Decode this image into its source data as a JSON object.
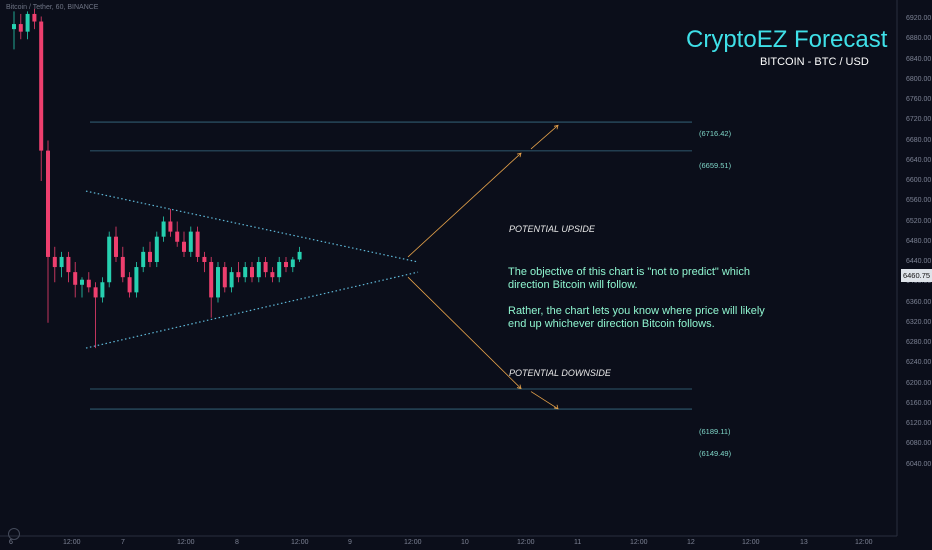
{
  "header": {
    "symbol_line": "Bitcoin / Tether, 60, BINANCE"
  },
  "title": {
    "main": "CryptoEZ Forecast",
    "sub": "BITCOIN - BTC / USD"
  },
  "annotations": {
    "potential_upside": "POTENTIAL UPSIDE",
    "potential_downside": "POTENTIAL DOWNSIDE",
    "note_1": "The objective of this chart is \"not to predict\" which\ndirection Bitcoin will follow.",
    "note_2": "Rather, the chart lets you know where price will likely\nend up whichever direction Bitcoin follows."
  },
  "levels": [
    {
      "label": "(6716.42)",
      "price": 6716.42
    },
    {
      "label": "(6659.51)",
      "price": 6659.51
    },
    {
      "label": "(6189.11)",
      "price": 6189.11
    },
    {
      "label": "(6149.49)",
      "price": 6149.49
    }
  ],
  "current_price": "6460.75",
  "price_axis": [
    "6920.00",
    "6880.00",
    "6840.00",
    "6800.00",
    "6760.00",
    "6720.00",
    "6680.00",
    "6640.00",
    "6600.00",
    "6560.00",
    "6520.00",
    "6480.00",
    "6440.00",
    "6400.00",
    "6360.00",
    "6320.00",
    "6280.00",
    "6240.00",
    "6200.00",
    "6160.00",
    "6120.00",
    "6080.00",
    "6040.00"
  ],
  "time_axis": [
    "6",
    "12:00",
    "7",
    "12:00",
    "8",
    "12:00",
    "9",
    "12:00",
    "10",
    "12:00",
    "11",
    "12:00",
    "12",
    "12:00",
    "13",
    "12:00"
  ],
  "colors": {
    "background": "#0b0e1a",
    "up_candle": "#26d0b0",
    "down_candle": "#ee3f6e",
    "triangle": "#5fb8d8",
    "projection": "#e6a24a",
    "level_line": "#3a6f86",
    "title": "#3fe0e8",
    "note": "#8ff5d0"
  },
  "chart_data": {
    "type": "candlestick",
    "ylim": [
      6020,
      6940
    ],
    "candles": [
      {
        "o": 6900,
        "h": 6935,
        "l": 6860,
        "c": 6910
      },
      {
        "o": 6910,
        "h": 6930,
        "l": 6880,
        "c": 6895
      },
      {
        "o": 6895,
        "h": 6935,
        "l": 6880,
        "c": 6930
      },
      {
        "o": 6930,
        "h": 6940,
        "l": 6900,
        "c": 6915
      },
      {
        "o": 6915,
        "h": 6925,
        "l": 6600,
        "c": 6660
      },
      {
        "o": 6660,
        "h": 6680,
        "l": 6320,
        "c": 6450
      },
      {
        "o": 6450,
        "h": 6470,
        "l": 6400,
        "c": 6430
      },
      {
        "o": 6430,
        "h": 6460,
        "l": 6410,
        "c": 6450
      },
      {
        "o": 6450,
        "h": 6460,
        "l": 6400,
        "c": 6420
      },
      {
        "o": 6420,
        "h": 6440,
        "l": 6370,
        "c": 6395
      },
      {
        "o": 6395,
        "h": 6410,
        "l": 6370,
        "c": 6405
      },
      {
        "o": 6405,
        "h": 6420,
        "l": 6380,
        "c": 6390
      },
      {
        "o": 6390,
        "h": 6400,
        "l": 6270,
        "c": 6370
      },
      {
        "o": 6370,
        "h": 6410,
        "l": 6360,
        "c": 6400
      },
      {
        "o": 6400,
        "h": 6500,
        "l": 6390,
        "c": 6490
      },
      {
        "o": 6490,
        "h": 6510,
        "l": 6440,
        "c": 6450
      },
      {
        "o": 6450,
        "h": 6470,
        "l": 6400,
        "c": 6410
      },
      {
        "o": 6410,
        "h": 6420,
        "l": 6370,
        "c": 6380
      },
      {
        "o": 6380,
        "h": 6440,
        "l": 6370,
        "c": 6430
      },
      {
        "o": 6430,
        "h": 6470,
        "l": 6420,
        "c": 6460
      },
      {
        "o": 6460,
        "h": 6480,
        "l": 6430,
        "c": 6440
      },
      {
        "o": 6440,
        "h": 6500,
        "l": 6430,
        "c": 6490
      },
      {
        "o": 6490,
        "h": 6530,
        "l": 6480,
        "c": 6520
      },
      {
        "o": 6520,
        "h": 6545,
        "l": 6490,
        "c": 6500
      },
      {
        "o": 6500,
        "h": 6520,
        "l": 6470,
        "c": 6480
      },
      {
        "o": 6480,
        "h": 6500,
        "l": 6450,
        "c": 6460
      },
      {
        "o": 6460,
        "h": 6510,
        "l": 6450,
        "c": 6500
      },
      {
        "o": 6500,
        "h": 6510,
        "l": 6440,
        "c": 6450
      },
      {
        "o": 6450,
        "h": 6460,
        "l": 6420,
        "c": 6440
      },
      {
        "o": 6440,
        "h": 6450,
        "l": 6330,
        "c": 6370
      },
      {
        "o": 6370,
        "h": 6440,
        "l": 6360,
        "c": 6430
      },
      {
        "o": 6430,
        "h": 6440,
        "l": 6380,
        "c": 6390
      },
      {
        "o": 6390,
        "h": 6430,
        "l": 6380,
        "c": 6420
      },
      {
        "o": 6420,
        "h": 6440,
        "l": 6400,
        "c": 6410
      },
      {
        "o": 6410,
        "h": 6440,
        "l": 6400,
        "c": 6430
      },
      {
        "o": 6430,
        "h": 6440,
        "l": 6400,
        "c": 6410
      },
      {
        "o": 6410,
        "h": 6450,
        "l": 6400,
        "c": 6440
      },
      {
        "o": 6440,
        "h": 6450,
        "l": 6410,
        "c": 6420
      },
      {
        "o": 6420,
        "h": 6430,
        "l": 6400,
        "c": 6410
      },
      {
        "o": 6410,
        "h": 6450,
        "l": 6400,
        "c": 6440
      },
      {
        "o": 6440,
        "h": 6450,
        "l": 6420,
        "c": 6430
      },
      {
        "o": 6430,
        "h": 6450,
        "l": 6420,
        "c": 6445
      },
      {
        "o": 6445,
        "h": 6470,
        "l": 6440,
        "c": 6460
      }
    ],
    "triangle": {
      "upper": [
        {
          "x": "6 12:00",
          "y": 6580
        },
        {
          "x": "9 12:00",
          "y": 6440
        }
      ],
      "lower": [
        {
          "x": "6 12:00",
          "y": 6270
        },
        {
          "x": "9 12:00",
          "y": 6420
        }
      ]
    },
    "projections": {
      "up": [
        {
          "x": "9 12:00",
          "y": 6450
        },
        {
          "x": "10 12:00",
          "y": 6655
        },
        {
          "x": "11",
          "y": 6710
        }
      ],
      "down": [
        {
          "x": "9 12:00",
          "y": 6410
        },
        {
          "x": "10 12:00",
          "y": 6190
        },
        {
          "x": "11",
          "y": 6150
        }
      ]
    },
    "grid": false,
    "legend": "none"
  }
}
